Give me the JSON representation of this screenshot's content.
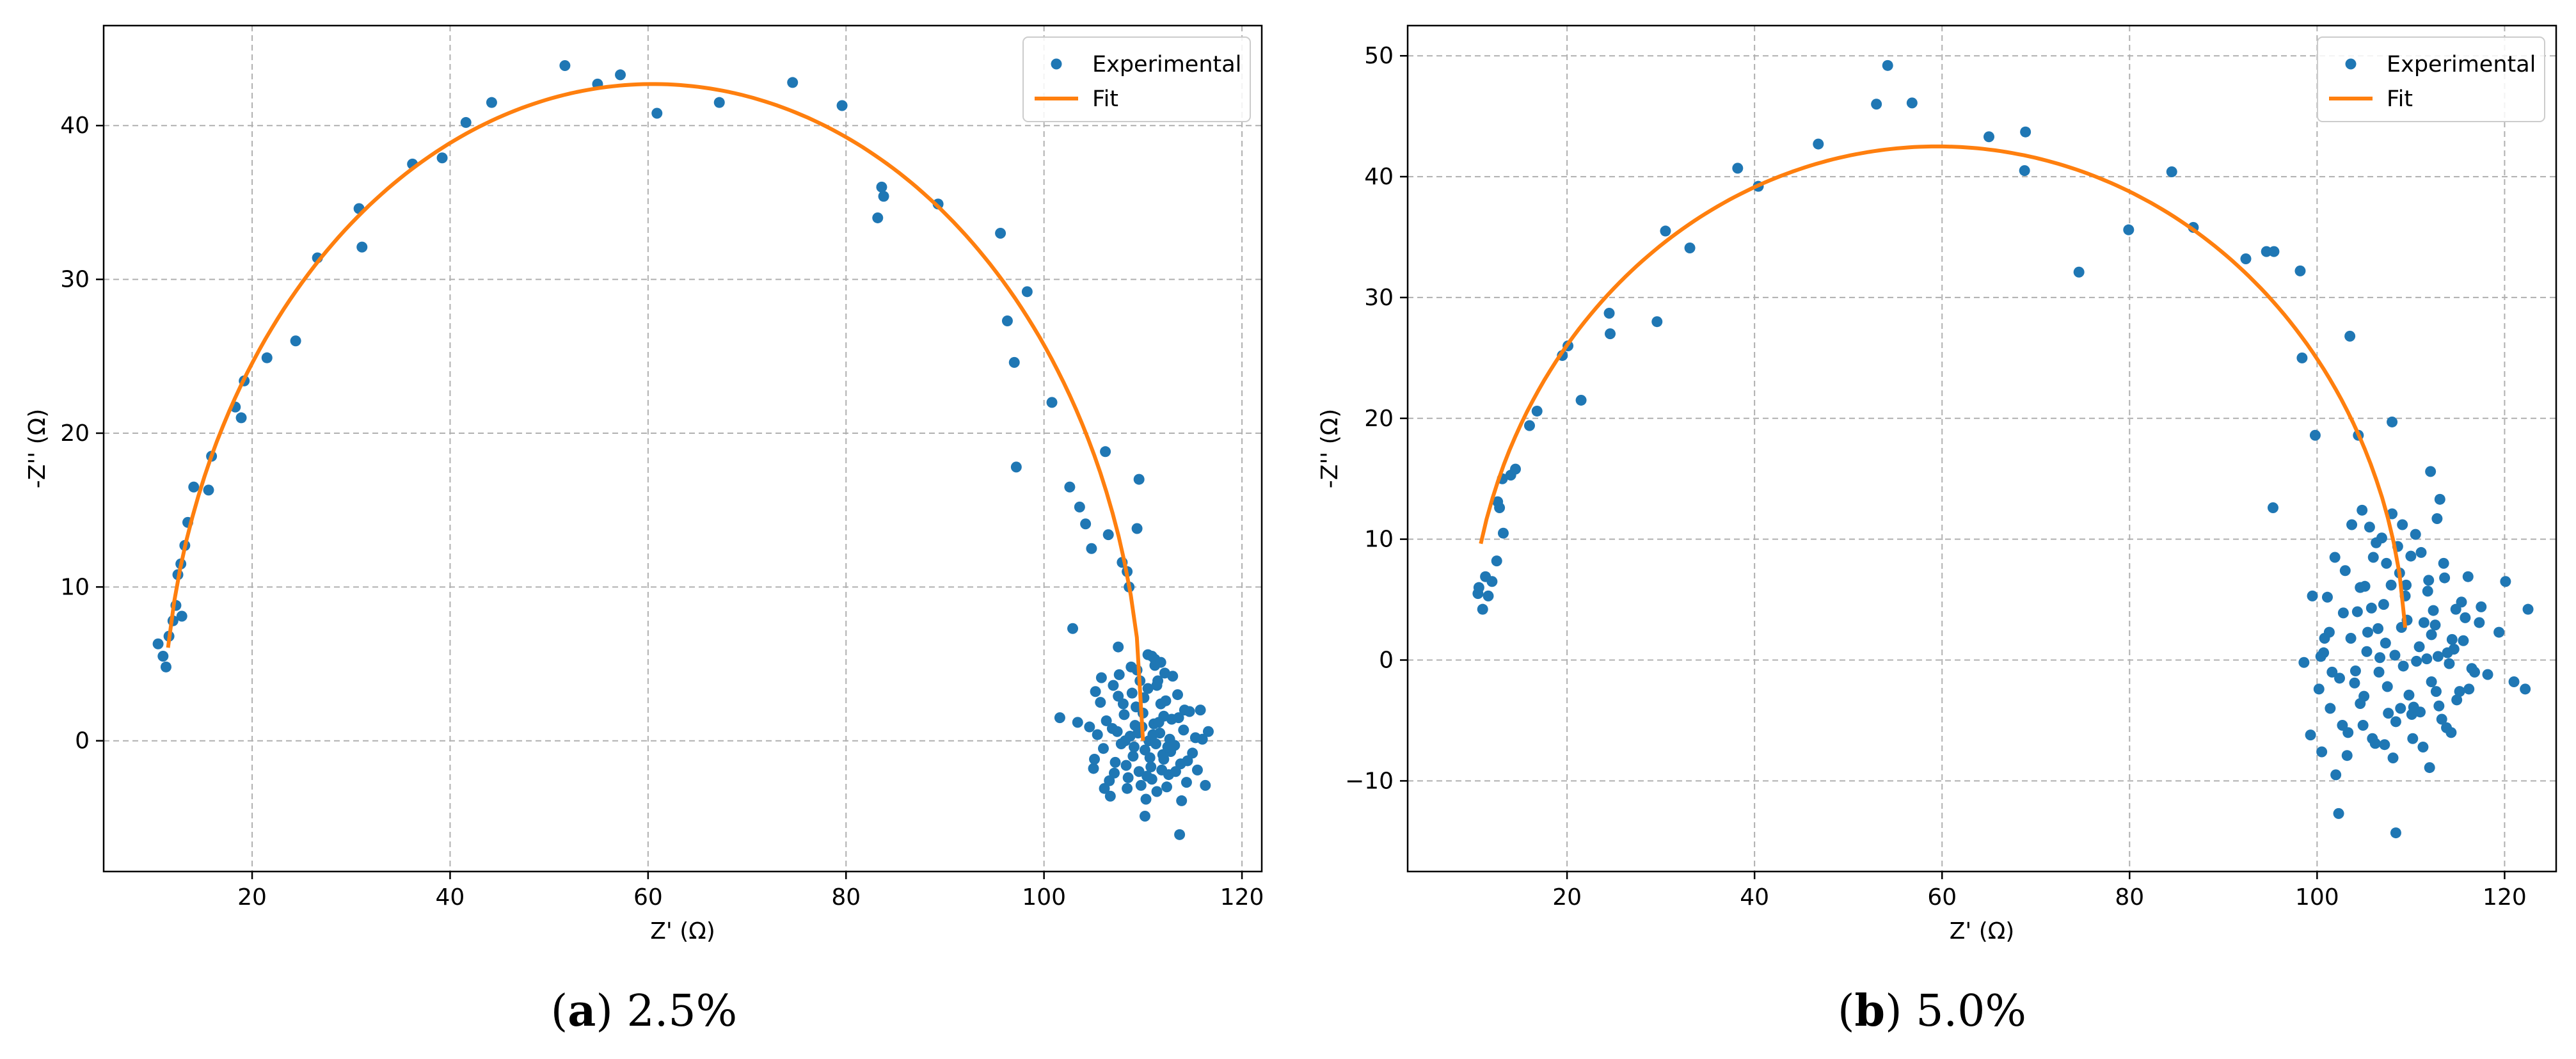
{
  "chart_data": [
    {
      "type": "scatter",
      "caption_label": "a",
      "caption_text": "2.5%",
      "xlabel": "Z' (Ω)",
      "ylabel": "-Z'' (Ω)",
      "xlim": [
        5,
        122
      ],
      "ylim": [
        -8.5,
        46.5
      ],
      "xticks": [
        20,
        40,
        60,
        80,
        100,
        120
      ],
      "yticks": [
        0,
        10,
        20,
        30,
        40
      ],
      "grid": true,
      "legend_position": "top-right",
      "legend": [
        "Experimental",
        "Fit"
      ],
      "colors": {
        "experimental": "#1f77b4",
        "fit": "#ff7f0e"
      },
      "fit_arc": {
        "center": 60.5,
        "radius": 49.5,
        "amplitude": 42.7,
        "x_start": 11.5,
        "x_end": 110.0
      },
      "experimental": [
        [
          10.5,
          6.3
        ],
        [
          11.0,
          5.5
        ],
        [
          11.3,
          4.8
        ],
        [
          11.6,
          6.8
        ],
        [
          12.0,
          7.8
        ],
        [
          12.3,
          8.8
        ],
        [
          12.5,
          10.8
        ],
        [
          12.8,
          11.5
        ],
        [
          12.9,
          8.1
        ],
        [
          13.2,
          12.7
        ],
        [
          13.5,
          14.2
        ],
        [
          14.1,
          16.5
        ],
        [
          15.6,
          16.3
        ],
        [
          15.9,
          18.5
        ],
        [
          18.3,
          21.7
        ],
        [
          18.9,
          21.0
        ],
        [
          19.2,
          23.4
        ],
        [
          21.5,
          24.9
        ],
        [
          24.4,
          26.0
        ],
        [
          26.6,
          31.4
        ],
        [
          30.8,
          34.6
        ],
        [
          31.1,
          32.1
        ],
        [
          36.2,
          37.5
        ],
        [
          39.2,
          37.9
        ],
        [
          41.6,
          40.2
        ],
        [
          44.2,
          41.5
        ],
        [
          51.6,
          43.9
        ],
        [
          54.9,
          42.7
        ],
        [
          57.2,
          43.3
        ],
        [
          60.9,
          40.8
        ],
        [
          67.2,
          41.5
        ],
        [
          74.6,
          42.8
        ],
        [
          79.6,
          41.3
        ],
        [
          83.2,
          34.0
        ],
        [
          83.6,
          36.0
        ],
        [
          83.8,
          35.4
        ],
        [
          89.3,
          34.9
        ],
        [
          95.6,
          33.0
        ],
        [
          96.3,
          27.3
        ],
        [
          97.0,
          24.6
        ],
        [
          97.2,
          17.8
        ],
        [
          98.3,
          29.2
        ],
        [
          100.8,
          22.0
        ],
        [
          101.6,
          1.5
        ],
        [
          102.6,
          16.5
        ],
        [
          102.9,
          7.3
        ],
        [
          103.4,
          1.2
        ],
        [
          103.6,
          15.2
        ],
        [
          104.2,
          14.1
        ],
        [
          104.8,
          12.5
        ],
        [
          105.2,
          3.2
        ],
        [
          106.2,
          18.8
        ],
        [
          106.5,
          13.4
        ],
        [
          107.5,
          6.1
        ],
        [
          107.9,
          11.6
        ],
        [
          108.4,
          11.0
        ],
        [
          108.6,
          10.0
        ],
        [
          109.4,
          13.8
        ],
        [
          109.6,
          17.0
        ],
        [
          110.2,
          -4.9
        ],
        [
          110.5,
          5.6
        ],
        [
          113.7,
          -6.1
        ],
        [
          116.3,
          -2.9
        ],
        [
          116.6,
          0.6
        ],
        [
          115.8,
          2.0
        ],
        [
          105.0,
          -1.8
        ],
        [
          105.4,
          0.4
        ],
        [
          105.7,
          2.5
        ],
        [
          106.0,
          -0.5
        ],
        [
          106.3,
          1.3
        ],
        [
          106.6,
          -2.6
        ],
        [
          106.9,
          0.8
        ],
        [
          107.2,
          -1.4
        ],
        [
          107.5,
          2.9
        ],
        [
          107.8,
          -0.2
        ],
        [
          108.1,
          1.7
        ],
        [
          108.4,
          -3.1
        ],
        [
          108.7,
          0.3
        ],
        [
          109.0,
          -1.0
        ],
        [
          109.3,
          2.2
        ],
        [
          109.6,
          -2.0
        ],
        [
          109.9,
          0.9
        ],
        [
          110.2,
          -0.6
        ],
        [
          110.5,
          3.4
        ],
        [
          110.8,
          -1.7
        ],
        [
          111.1,
          1.1
        ],
        [
          111.4,
          -3.3
        ],
        [
          111.7,
          0.5
        ],
        [
          112.0,
          -0.9
        ],
        [
          112.3,
          2.6
        ],
        [
          112.6,
          -2.2
        ],
        [
          112.9,
          1.4
        ],
        [
          113.2,
          -0.3
        ],
        [
          113.5,
          3.0
        ],
        [
          113.8,
          -1.5
        ],
        [
          114.1,
          0.7
        ],
        [
          114.4,
          -2.7
        ],
        [
          114.7,
          1.9
        ],
        [
          115.0,
          -0.8
        ],
        [
          115.3,
          0.2
        ],
        [
          105.8,
          4.1
        ],
        [
          106.7,
          -3.6
        ],
        [
          107.6,
          4.3
        ],
        [
          108.5,
          -2.4
        ],
        [
          109.4,
          4.6
        ],
        [
          110.3,
          -3.8
        ],
        [
          111.2,
          4.9
        ],
        [
          112.1,
          -1.2
        ],
        [
          113.0,
          4.2
        ],
        [
          113.9,
          -3.9
        ],
        [
          108.2,
          0.0
        ],
        [
          109.1,
          -0.4
        ],
        [
          110.0,
          1.8
        ],
        [
          110.9,
          -2.5
        ],
        [
          111.8,
          2.4
        ],
        [
          112.7,
          0.1
        ],
        [
          107.0,
          3.6
        ],
        [
          108.9,
          3.1
        ],
        [
          110.7,
          -1.1
        ],
        [
          111.5,
          3.9
        ],
        [
          112.4,
          -3.0
        ],
        [
          109.8,
          -2.9
        ],
        [
          110.6,
          0.0
        ],
        [
          111.3,
          -0.2
        ],
        [
          112.1,
          1.6
        ],
        [
          104.6,
          0.9
        ],
        [
          105.1,
          -1.2
        ],
        [
          106.1,
          -3.1
        ],
        [
          107.1,
          -2.1
        ],
        [
          108.0,
          2.4
        ],
        [
          109.2,
          1.0
        ],
        [
          110.1,
          2.8
        ],
        [
          111.0,
          0.4
        ],
        [
          111.9,
          -1.9
        ],
        [
          112.8,
          -0.7
        ],
        [
          113.6,
          1.5
        ],
        [
          114.5,
          -1.3
        ],
        [
          115.5,
          -1.9
        ],
        [
          116.0,
          0.1
        ],
        [
          107.4,
          0.6
        ],
        [
          108.3,
          -1.6
        ],
        [
          109.5,
          0.5
        ],
        [
          110.4,
          -2.3
        ],
        [
          111.6,
          1.2
        ],
        [
          112.5,
          -0.4
        ],
        [
          113.3,
          -2.0
        ],
        [
          114.2,
          2.0
        ],
        [
          111.2,
          5.3
        ],
        [
          111.8,
          5.1
        ],
        [
          112.2,
          4.4
        ],
        [
          110.9,
          5.5
        ],
        [
          109.7,
          3.9
        ],
        [
          108.8,
          4.8
        ],
        [
          111.4,
          3.6
        ]
      ]
    },
    {
      "type": "scatter",
      "caption_label": "b",
      "caption_text": "5.0%",
      "xlabel": "Z' (Ω)",
      "ylabel": "-Z'' (Ω)",
      "xlim": [
        3,
        125.5
      ],
      "ylim": [
        -17.5,
        52.5
      ],
      "xticks": [
        20,
        40,
        60,
        80,
        100,
        120
      ],
      "yticks": [
        -10,
        0,
        10,
        20,
        30,
        40,
        50
      ],
      "grid": true,
      "legend_position": "top-right",
      "legend": [
        "Experimental",
        "Fit"
      ],
      "colors": {
        "experimental": "#1f77b4",
        "fit": "#ff7f0e"
      },
      "fit_arc": {
        "center": 59.5,
        "radius": 50.0,
        "amplitude": 42.5,
        "x_start": 10.8,
        "x_end": 109.4
      },
      "experimental": [
        [
          10.5,
          5.5
        ],
        [
          10.6,
          6.0
        ],
        [
          11.0,
          4.2
        ],
        [
          11.3,
          6.9
        ],
        [
          11.6,
          5.3
        ],
        [
          12.0,
          6.5
        ],
        [
          12.5,
          8.2
        ],
        [
          12.6,
          13.1
        ],
        [
          12.8,
          12.6
        ],
        [
          13.2,
          10.5
        ],
        [
          13.1,
          15.0
        ],
        [
          14.0,
          15.3
        ],
        [
          14.5,
          15.8
        ],
        [
          16.0,
          19.4
        ],
        [
          16.8,
          20.6
        ],
        [
          19.5,
          25.2
        ],
        [
          20.1,
          26.0
        ],
        [
          21.5,
          21.5
        ],
        [
          24.5,
          28.7
        ],
        [
          24.6,
          27.0
        ],
        [
          29.6,
          28.0
        ],
        [
          30.5,
          35.5
        ],
        [
          33.1,
          34.1
        ],
        [
          38.2,
          40.7
        ],
        [
          40.4,
          39.2
        ],
        [
          46.8,
          42.7
        ],
        [
          53.0,
          46.0
        ],
        [
          54.2,
          49.2
        ],
        [
          56.8,
          46.1
        ],
        [
          65.0,
          43.3
        ],
        [
          68.8,
          40.5
        ],
        [
          68.9,
          43.7
        ],
        [
          74.6,
          32.1
        ],
        [
          79.9,
          35.6
        ],
        [
          84.5,
          40.4
        ],
        [
          86.8,
          35.8
        ],
        [
          92.4,
          33.2
        ],
        [
          94.6,
          33.8
        ],
        [
          95.4,
          33.8
        ],
        [
          98.2,
          32.2
        ],
        [
          98.4,
          25.0
        ],
        [
          99.8,
          18.6
        ],
        [
          103.5,
          26.8
        ],
        [
          104.4,
          18.6
        ],
        [
          108.0,
          19.7
        ],
        [
          112.1,
          15.6
        ],
        [
          95.3,
          12.6
        ],
        [
          98.6,
          -0.2
        ],
        [
          99.3,
          -6.2
        ],
        [
          99.5,
          5.3
        ],
        [
          100.2,
          -2.4
        ],
        [
          100.8,
          1.8
        ],
        [
          101.4,
          -4.0
        ],
        [
          101.9,
          8.5
        ],
        [
          102.4,
          -1.5
        ],
        [
          102.8,
          3.9
        ],
        [
          103.2,
          -7.9
        ],
        [
          103.7,
          11.2
        ],
        [
          104.1,
          -0.9
        ],
        [
          104.6,
          6.0
        ],
        [
          105.0,
          -3.0
        ],
        [
          105.4,
          2.3
        ],
        [
          105.9,
          -6.5
        ],
        [
          106.3,
          9.7
        ],
        [
          106.7,
          0.2
        ],
        [
          107.1,
          4.6
        ],
        [
          107.5,
          -2.2
        ],
        [
          108.0,
          12.1
        ],
        [
          108.4,
          -5.1
        ],
        [
          108.8,
          7.2
        ],
        [
          109.2,
          -0.5
        ],
        [
          109.6,
          3.3
        ],
        [
          110.1,
          -4.5
        ],
        [
          110.5,
          10.4
        ],
        [
          110.9,
          1.1
        ],
        [
          111.3,
          -7.2
        ],
        [
          111.8,
          5.7
        ],
        [
          112.2,
          -1.8
        ],
        [
          112.6,
          2.9
        ],
        [
          113.0,
          -3.8
        ],
        [
          113.5,
          8.0
        ],
        [
          113.9,
          0.6
        ],
        [
          114.3,
          -6.0
        ],
        [
          114.8,
          4.2
        ],
        [
          115.2,
          -2.6
        ],
        [
          115.6,
          1.6
        ],
        [
          116.1,
          6.9
        ],
        [
          116.5,
          -0.7
        ],
        [
          117.3,
          3.1
        ],
        [
          118.2,
          -1.2
        ],
        [
          119.4,
          2.3
        ],
        [
          120.1,
          6.5
        ],
        [
          121.0,
          -1.8
        ],
        [
          122.5,
          4.2
        ],
        [
          122.2,
          -2.4
        ],
        [
          102.0,
          -9.5
        ],
        [
          102.3,
          -12.7
        ],
        [
          108.4,
          -14.3
        ],
        [
          104.0,
          -1.9
        ],
        [
          105.1,
          6.1
        ],
        [
          106.2,
          -6.9
        ],
        [
          107.3,
          1.4
        ],
        [
          108.1,
          -8.1
        ],
        [
          109.0,
          2.7
        ],
        [
          110.3,
          -3.9
        ],
        [
          111.1,
          8.9
        ],
        [
          112.0,
          -8.9
        ],
        [
          112.9,
          0.3
        ],
        [
          113.8,
          -5.6
        ],
        [
          114.6,
          0.9
        ],
        [
          101.1,
          5.2
        ],
        [
          103.0,
          7.4
        ],
        [
          104.8,
          12.4
        ],
        [
          106.6,
          -1.0
        ],
        [
          108.6,
          9.4
        ],
        [
          110.6,
          -0.1
        ],
        [
          112.4,
          4.1
        ],
        [
          113.3,
          -4.9
        ],
        [
          101.6,
          -1.0
        ],
        [
          103.6,
          1.8
        ],
        [
          105.6,
          11.0
        ],
        [
          107.6,
          -4.4
        ],
        [
          109.4,
          5.3
        ],
        [
          111.4,
          3.1
        ],
        [
          100.5,
          -7.6
        ],
        [
          102.7,
          -5.4
        ],
        [
          104.6,
          -3.6
        ],
        [
          106.5,
          2.6
        ],
        [
          108.3,
          0.4
        ],
        [
          110.2,
          -6.5
        ],
        [
          112.2,
          2.1
        ],
        [
          114.1,
          -0.3
        ],
        [
          115.4,
          4.8
        ],
        [
          116.8,
          -1.0
        ],
        [
          104.3,
          4.0
        ],
        [
          106.0,
          8.5
        ],
        [
          107.9,
          6.2
        ],
        [
          109.8,
          -2.9
        ],
        [
          111.7,
          0.1
        ],
        [
          113.6,
          6.8
        ],
        [
          100.7,
          0.6
        ],
        [
          103.3,
          -6.0
        ],
        [
          105.3,
          0.7
        ],
        [
          107.2,
          -7.0
        ],
        [
          109.1,
          11.2
        ],
        [
          111.0,
          -4.3
        ],
        [
          112.8,
          11.7
        ],
        [
          114.9,
          -3.3
        ],
        [
          101.3,
          2.3
        ],
        [
          105.8,
          4.3
        ],
        [
          108.9,
          -4.0
        ],
        [
          111.9,
          6.6
        ],
        [
          113.1,
          13.3
        ],
        [
          104.9,
          -5.4
        ],
        [
          107.4,
          8.0
        ],
        [
          110.0,
          8.6
        ],
        [
          115.8,
          3.5
        ],
        [
          117.5,
          4.4
        ],
        [
          100.4,
          0.3
        ],
        [
          106.9,
          10.1
        ],
        [
          109.5,
          6.2
        ],
        [
          112.7,
          -2.6
        ],
        [
          114.4,
          1.7
        ],
        [
          116.2,
          -2.4
        ]
      ]
    }
  ]
}
